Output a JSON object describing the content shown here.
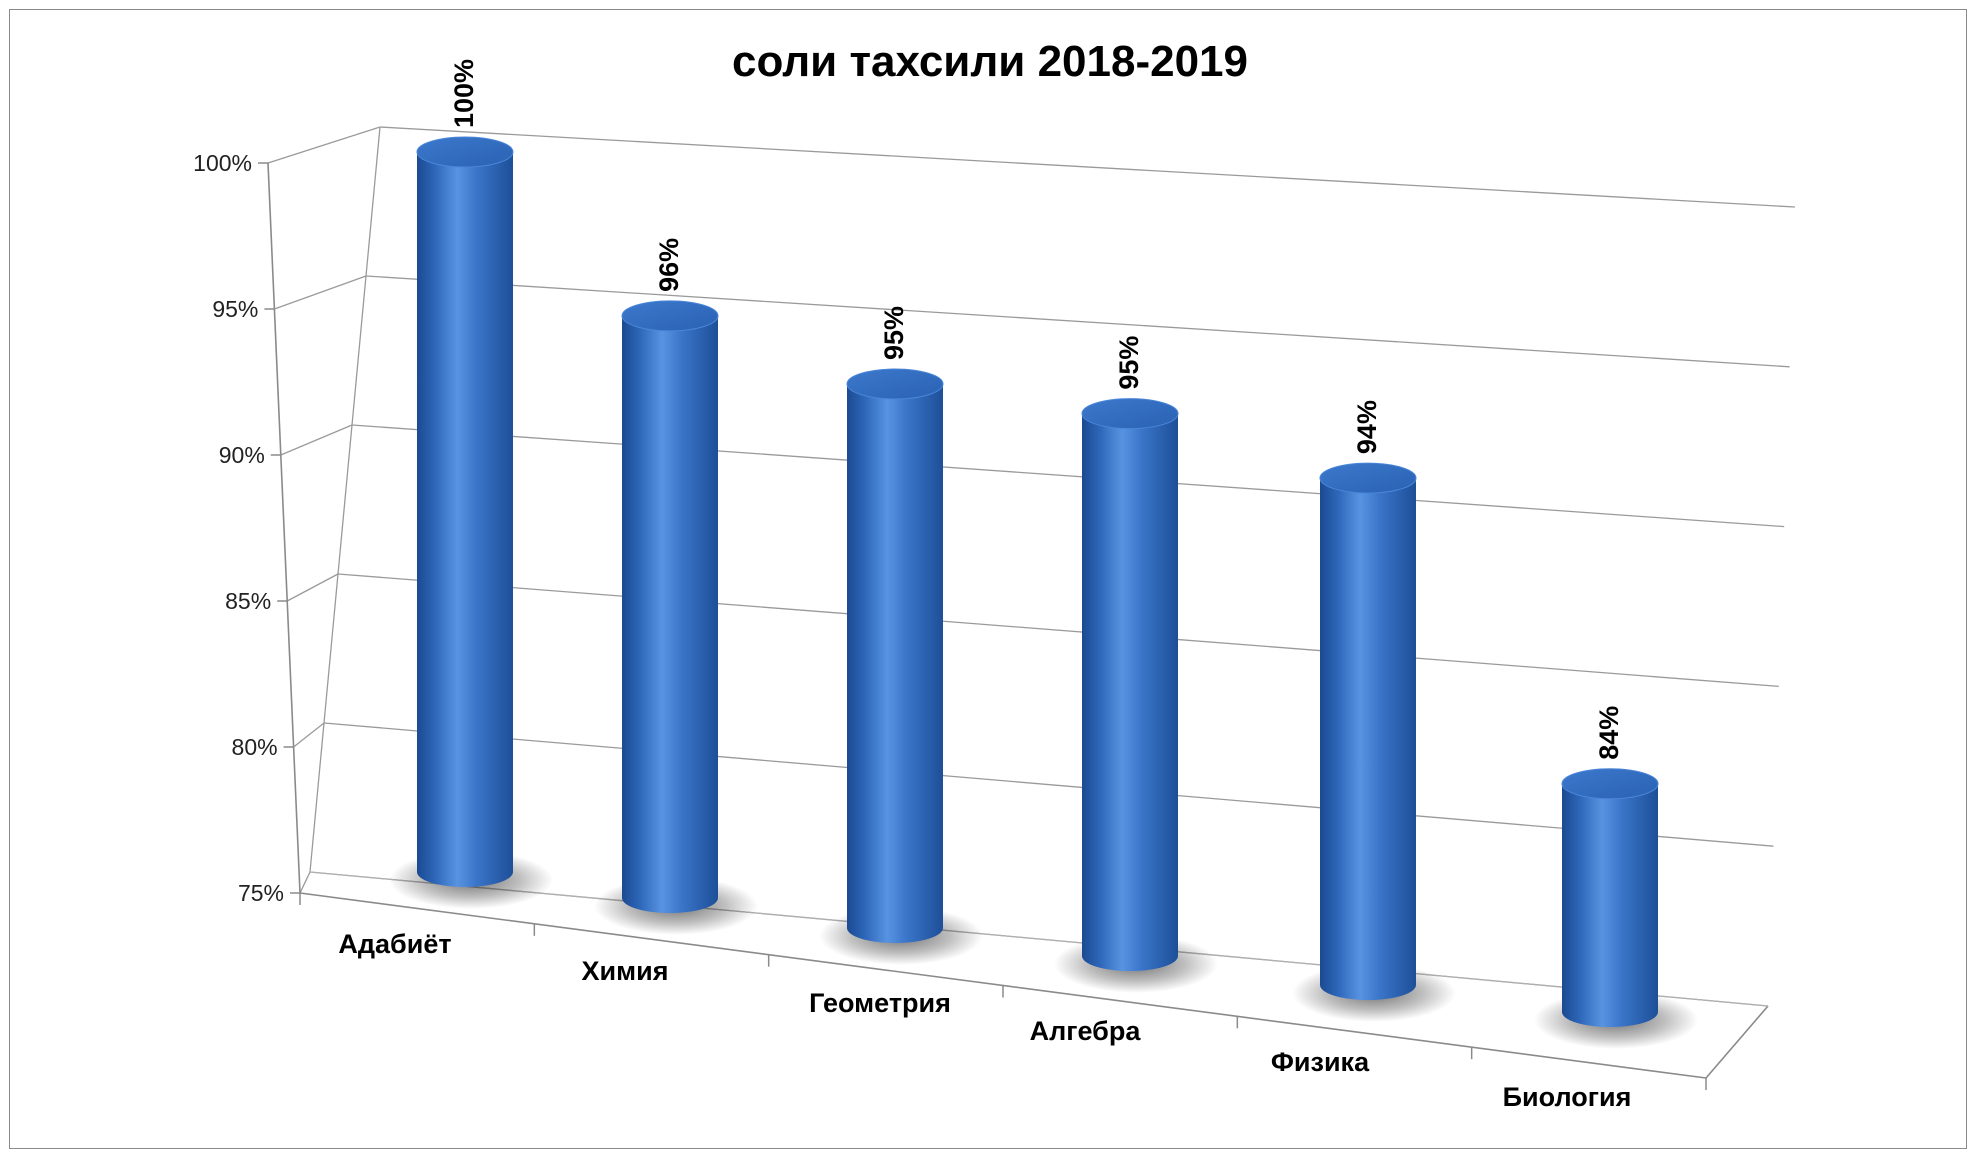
{
  "chart_data": {
    "type": "bar",
    "style": "3d-cylinder",
    "title": "соли тахсили 2018-2019",
    "xlabel": "",
    "ylabel": "",
    "categories": [
      "Адабиёт",
      "Химия",
      "Геометрия",
      "Алгебра",
      "Физика",
      "Биология"
    ],
    "values": [
      100,
      96,
      95,
      95,
      94,
      84
    ],
    "data_labels": [
      "100%",
      "96%",
      "95%",
      "95%",
      "94%",
      "84%"
    ],
    "ylim": [
      75,
      100
    ],
    "yticks": [
      75,
      80,
      85,
      90,
      95,
      100
    ],
    "ytick_labels": [
      "75%",
      "80%",
      "85%",
      "90%",
      "95%",
      "100%"
    ],
    "grid": true,
    "legend": "none",
    "bar_color": "#2F6CC0",
    "bar_highlight": "#5C97E6",
    "bar_shadow_color": "#1E4E95"
  }
}
